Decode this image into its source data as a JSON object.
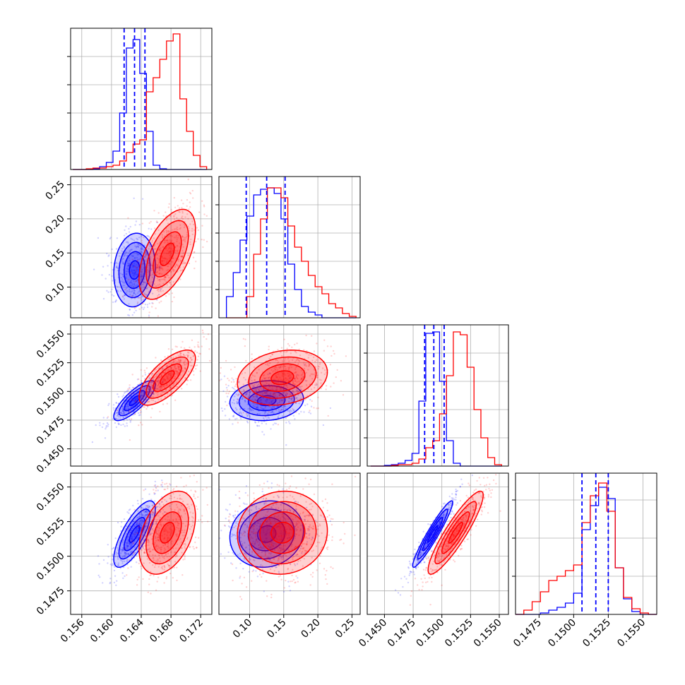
{
  "chart_data": {
    "type": "corner",
    "title": "",
    "n_params": 4,
    "axis_labels": [
      "",
      "",
      "",
      ""
    ],
    "colors": {
      "blue": "#0000ff",
      "red": "#ff0000"
    },
    "ranges": [
      [
        0.1545,
        0.1735
      ],
      [
        0.055,
        0.262
      ],
      [
        0.1435,
        0.1558
      ],
      [
        0.1458,
        0.156
      ]
    ],
    "bottom_ticks": [
      {
        "values": [
          0.156,
          0.16,
          0.164,
          0.168,
          0.172
        ],
        "labels": [
          "0.156",
          "0.160",
          "0.164",
          "0.168",
          "0.172"
        ]
      },
      {
        "values": [
          0.1,
          0.15,
          0.2,
          0.25
        ],
        "labels": [
          "0.10",
          "0.15",
          "0.20",
          "0.25"
        ]
      },
      {
        "values": [
          0.145,
          0.1475,
          0.15,
          0.1525,
          0.155
        ],
        "labels": [
          "0.1450",
          "0.1475",
          "0.1500",
          "0.1525",
          "0.1550"
        ]
      },
      {
        "values": [
          0.1475,
          0.15,
          0.1525,
          0.155
        ],
        "labels": [
          "0.1475",
          "0.1500",
          "0.1525",
          "0.1550"
        ]
      }
    ],
    "left_ticks": [
      null,
      {
        "values": [
          0.1,
          0.15,
          0.2,
          0.25
        ],
        "labels": [
          "0.10",
          "0.15",
          "0.20",
          "0.25"
        ]
      },
      {
        "values": [
          0.145,
          0.1475,
          0.15,
          0.1525,
          0.155
        ],
        "labels": [
          "0.1450",
          "0.1475",
          "0.1500",
          "0.1525",
          "0.1550"
        ]
      },
      {
        "values": [
          0.1475,
          0.15,
          0.1525,
          0.155
        ],
        "labels": [
          "0.1475",
          "0.1500",
          "0.1525",
          "0.1550"
        ]
      }
    ],
    "hist_ticks": [
      [
        0.2,
        0.4,
        0.6,
        0.8
      ],
      [
        0.2,
        0.4,
        0.6,
        0.8
      ],
      [
        0.2,
        0.4,
        0.6,
        0.8
      ],
      [
        0.27,
        0.54,
        0.81
      ]
    ],
    "series": [
      {
        "color": "#0000ff",
        "means": [
          0.1631,
          0.125,
          0.1492,
          0.1516
        ],
        "sds": [
          0.0014,
          0.027,
          0.00087,
          0.0012
        ],
        "quantiles": [
          [
            0.1617,
            0.1631,
            0.1645
          ],
          [
            0.095,
            0.125,
            0.152
          ],
          [
            0.1485,
            0.1493,
            0.1502
          ],
          [
            0.1506,
            0.1516,
            0.1525
          ]
        ],
        "correlations": {
          "0-1": 0.1,
          "0-2": 0.8,
          "0-3": 0.75,
          "1-2": 0.1,
          "1-3": 0.1,
          "2-3": 0.95
        }
      },
      {
        "color": "#ff0000",
        "means": [
          0.1675,
          0.148,
          0.1512,
          0.1517
        ],
        "sds": [
          0.0019,
          0.033,
          0.0012,
          0.0015
        ],
        "correlations": {
          "0-1": 0.55,
          "0-2": 0.7,
          "0-3": 0.4,
          "1-2": 0.2,
          "1-3": 0.05,
          "2-3": 0.9
        }
      }
    ],
    "hist_bins": [
      {
        "bins": [
          0.1548,
          0.1557,
          0.1566,
          0.1575,
          0.1584,
          0.1593,
          0.1602,
          0.1611,
          0.162,
          0.1629,
          0.1638,
          0.1647,
          0.1656,
          0.1665,
          0.1674,
          0.1683,
          0.1692,
          0.1701,
          0.171,
          0.1719,
          0.1728
        ],
        "blue": [
          0.0,
          0.0,
          0.0,
          0.005,
          0.02,
          0.05,
          0.13,
          0.4,
          0.86,
          0.92,
          0.68,
          0.27,
          0.03,
          0.005,
          0.0,
          0.0,
          0.0,
          0.0,
          0.0,
          0.0
        ],
        "red": [
          0.0,
          0.0,
          0.005,
          0.01,
          0.01,
          0.02,
          0.03,
          0.06,
          0.12,
          0.18,
          0.21,
          0.55,
          0.65,
          0.78,
          0.91,
          0.96,
          0.5,
          0.27,
          0.1,
          0.02
        ]
      },
      {
        "bins": [
          0.066,
          0.076,
          0.086,
          0.096,
          0.106,
          0.116,
          0.126,
          0.136,
          0.146,
          0.156,
          0.166,
          0.176,
          0.186,
          0.196,
          0.206,
          0.216,
          0.226,
          0.236,
          0.246,
          0.256
        ],
        "blue": [
          0.15,
          0.32,
          0.55,
          0.72,
          0.87,
          0.91,
          0.92,
          0.88,
          0.7,
          0.38,
          0.2,
          0.08,
          0.04,
          0.02,
          0.0,
          0.0,
          0.0,
          0.0,
          0.0
        ],
        "red": [
          0.0,
          0.0,
          0.0,
          0.15,
          0.45,
          0.7,
          0.92,
          0.92,
          0.85,
          0.65,
          0.5,
          0.4,
          0.3,
          0.22,
          0.17,
          0.1,
          0.07,
          0.03,
          0.01
        ]
      },
      {
        "bins": [
          0.1438,
          0.1444,
          0.145,
          0.1456,
          0.1462,
          0.1468,
          0.1474,
          0.148,
          0.1486,
          0.1492,
          0.1498,
          0.1504,
          0.151,
          0.1516,
          0.1522,
          0.1528,
          0.1534,
          0.154,
          0.1546,
          0.1552
        ],
        "blue": [
          0.0,
          0.0,
          0.005,
          0.01,
          0.02,
          0.04,
          0.09,
          0.46,
          0.94,
          0.95,
          0.6,
          0.18,
          0.02,
          0.0,
          0.0,
          0.0,
          0.0,
          0.0,
          0.0
        ],
        "red": [
          0.0,
          0.0,
          0.0,
          0.005,
          0.01,
          0.01,
          0.02,
          0.05,
          0.13,
          0.18,
          0.37,
          0.64,
          0.95,
          0.93,
          0.7,
          0.4,
          0.2,
          0.06,
          0.01
        ]
      },
      {
        "bins": [
          0.1458,
          0.1464,
          0.147,
          0.1476,
          0.1482,
          0.1488,
          0.1494,
          0.15,
          0.1506,
          0.1512,
          0.1518,
          0.1524,
          0.153,
          0.1536,
          0.1542,
          0.1548,
          0.1554,
          0.156
        ],
        "blue": [
          0.0,
          0.0,
          0.0,
          0.01,
          0.03,
          0.05,
          0.08,
          0.15,
          0.6,
          0.77,
          0.9,
          0.82,
          0.33,
          0.11,
          0.02,
          0.0,
          0.0
        ],
        "red": [
          0.0,
          0.03,
          0.09,
          0.16,
          0.24,
          0.27,
          0.31,
          0.35,
          0.65,
          0.84,
          0.93,
          0.73,
          0.33,
          0.12,
          0.04,
          0.01,
          0.0
        ]
      }
    ]
  }
}
